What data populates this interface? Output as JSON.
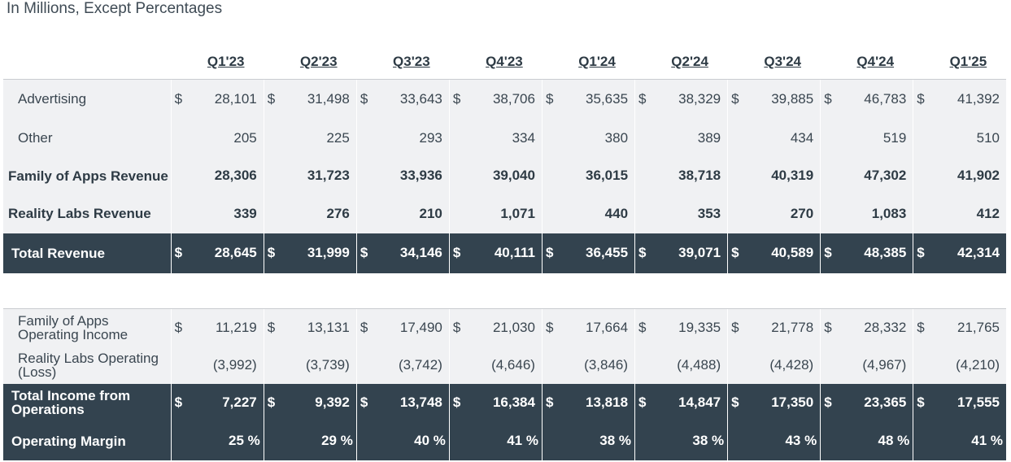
{
  "subtitle": "In Millions, Except Percentages",
  "quarters": [
    "Q1'23",
    "Q2'23",
    "Q3'23",
    "Q4'23",
    "Q1'24",
    "Q2'24",
    "Q3'24",
    "Q4'24",
    "Q1'25"
  ],
  "revenue_rows": [
    {
      "label": "Advertising",
      "dollar": true,
      "style": "normal",
      "values": [
        "28,101",
        "31,498",
        "33,643",
        "38,706",
        "35,635",
        "38,329",
        "39,885",
        "46,783",
        "41,392"
      ]
    },
    {
      "label": "Other",
      "dollar": false,
      "style": "normal",
      "values": [
        "205",
        "225",
        "293",
        "334",
        "380",
        "389",
        "434",
        "519",
        "510"
      ]
    },
    {
      "label": "Family of Apps Revenue",
      "dollar": false,
      "style": "bold",
      "values": [
        "28,306",
        "31,723",
        "33,936",
        "39,040",
        "36,015",
        "38,718",
        "40,319",
        "47,302",
        "41,902"
      ]
    },
    {
      "label": "Reality Labs Revenue",
      "dollar": false,
      "style": "bold",
      "values": [
        "339",
        "276",
        "210",
        "1,071",
        "440",
        "353",
        "270",
        "1,083",
        "412"
      ]
    },
    {
      "label": "Total Revenue",
      "dollar": true,
      "style": "dark",
      "values": [
        "28,645",
        "31,999",
        "34,146",
        "40,111",
        "36,455",
        "39,071",
        "40,589",
        "48,385",
        "42,314"
      ]
    }
  ],
  "operations_rows": [
    {
      "label": "Family of Apps Operating Income",
      "dollar": true,
      "style": "normal",
      "values": [
        "11,219",
        "13,131",
        "17,490",
        "21,030",
        "17,664",
        "19,335",
        "21,778",
        "28,332",
        "21,765"
      ]
    },
    {
      "label": "Reality Labs Operating (Loss)",
      "dollar": false,
      "style": "normal",
      "values": [
        "(3,992)",
        "(3,739)",
        "(3,742)",
        "(4,646)",
        "(3,846)",
        "(4,488)",
        "(4,428)",
        "(4,967)",
        "(4,210)"
      ]
    },
    {
      "label": "Total Income from Operations",
      "dollar": true,
      "style": "dark",
      "values": [
        "7,227",
        "9,392",
        "13,748",
        "16,384",
        "13,818",
        "14,847",
        "17,350",
        "23,365",
        "17,555"
      ]
    },
    {
      "label": "Operating Margin",
      "dollar": false,
      "style": "dark",
      "values": [
        "25 %",
        "29 %",
        "40 %",
        "41 %",
        "38 %",
        "38 %",
        "43 %",
        "48 %",
        "41 %"
      ]
    }
  ],
  "dollar_sign": "$",
  "colors": {
    "dark_row": "#33434f",
    "light_row": "#f0f1f3",
    "text": "#3a4650"
  }
}
